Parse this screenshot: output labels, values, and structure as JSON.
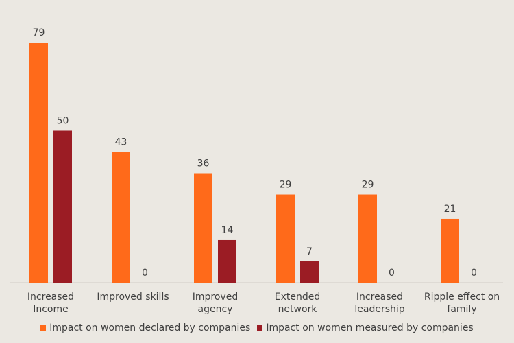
{
  "chart_data": {
    "type": "bar",
    "categories": [
      "Increased Income",
      "Improved skills",
      "Improved agency",
      "Extended network",
      "Increased leadership",
      "Ripple effect on family"
    ],
    "series": [
      {
        "name": "Impact on women declared by companies",
        "color": "#ff6a1a",
        "values": [
          79,
          43,
          36,
          29,
          29,
          21
        ]
      },
      {
        "name": "Impact on women measured by companies",
        "color": "#9b1c24",
        "values": [
          50,
          0,
          14,
          7,
          0,
          0
        ]
      }
    ],
    "legend": "bottom"
  }
}
